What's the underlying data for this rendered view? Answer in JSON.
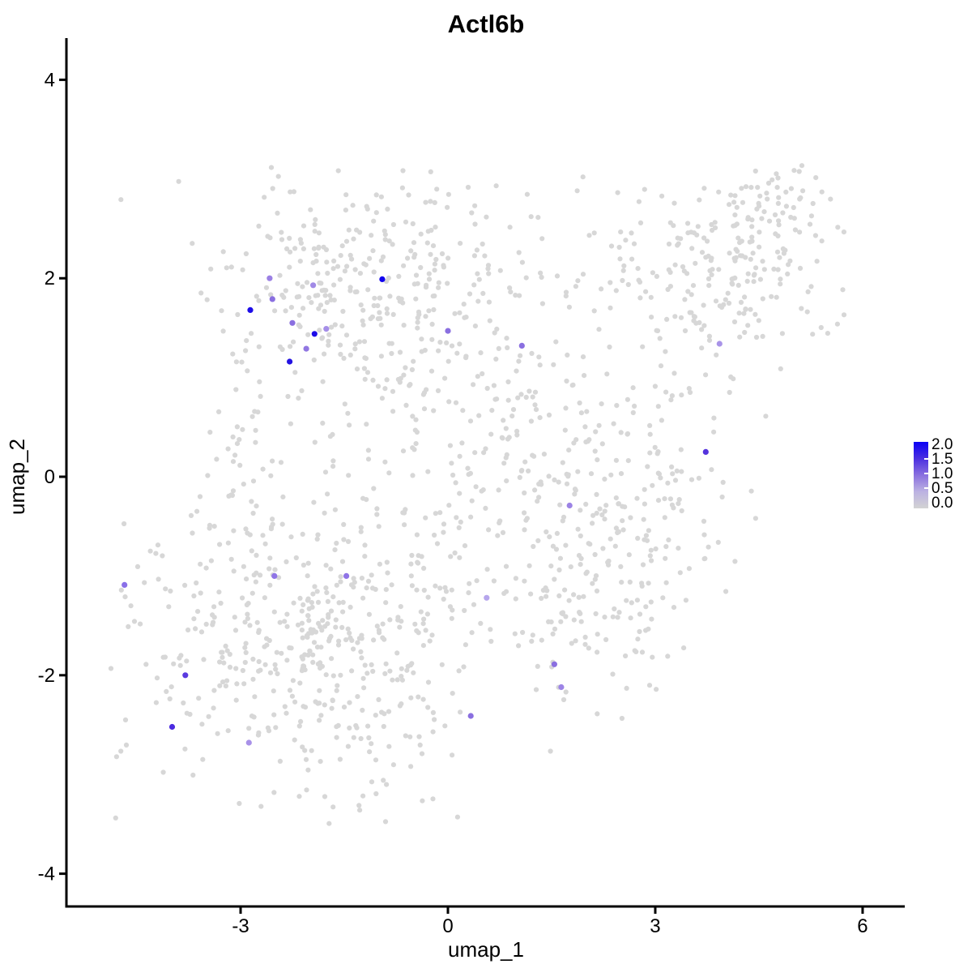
{
  "title": "Actl6b",
  "axes": {
    "x": {
      "label": "umap_1",
      "tick_labels": [
        "-3",
        "0",
        "3",
        "6"
      ],
      "tick_values": [
        -3,
        0,
        3,
        6
      ],
      "range": [
        -5.52,
        6.61
      ]
    },
    "y": {
      "label": "umap_2",
      "tick_labels": [
        "4",
        "2",
        "0",
        "-2",
        "-4"
      ],
      "tick_values": [
        4,
        2,
        0,
        -2,
        -4
      ],
      "range": [
        -4.33,
        4.42
      ]
    }
  },
  "legend": {
    "labels": [
      "2.0",
      "1.5",
      "1.0",
      "0.5",
      "0.0"
    ],
    "values": [
      2.0,
      1.5,
      1.0,
      0.5,
      0.0
    ],
    "gradient_stops": [
      "#0b00f5",
      "#4b2fe0",
      "#8a70df",
      "#bcb2e2",
      "#d3d3d3"
    ]
  },
  "colors": {
    "background_dot": "#d7d7d7",
    "axis": "#000000",
    "accent_high": "#0000ff",
    "accent_low": "#d3d3d3"
  },
  "chart_data": {
    "type": "scatter",
    "title": "Actl6b",
    "xlabel": "umap_1",
    "ylabel": "umap_2",
    "xlim": [
      -5.52,
      6.61
    ],
    "ylim": [
      -4.33,
      4.42
    ],
    "grid": false,
    "legend_position": "right",
    "expression_scale": {
      "min": 0.0,
      "max": 2.0,
      "low_color": "#d3d3d3",
      "high_color": "#0000ff"
    },
    "highlighted_points": [
      {
        "x": -2.86,
        "y": 1.68,
        "value": 1.9,
        "color": "#1d0ce8"
      },
      {
        "x": -2.58,
        "y": 2.0,
        "value": 0.7,
        "color": "#9b80e4"
      },
      {
        "x": -2.54,
        "y": 1.79,
        "value": 0.9,
        "color": "#8a6fe0"
      },
      {
        "x": -1.95,
        "y": 1.93,
        "value": 0.65,
        "color": "#a18ae6"
      },
      {
        "x": -0.95,
        "y": 1.99,
        "value": 2.0,
        "color": "#1102ee"
      },
      {
        "x": -1.93,
        "y": 1.44,
        "value": 1.9,
        "color": "#1d0ce8"
      },
      {
        "x": -1.76,
        "y": 1.49,
        "value": 0.6,
        "color": "#a58ee8"
      },
      {
        "x": -2.25,
        "y": 1.55,
        "value": 0.85,
        "color": "#8a6fe0"
      },
      {
        "x": -2.05,
        "y": 1.29,
        "value": 0.8,
        "color": "#9177e2"
      },
      {
        "x": -2.29,
        "y": 1.16,
        "value": 1.8,
        "color": "#2312e2"
      },
      {
        "x": 0.0,
        "y": 1.47,
        "value": 0.9,
        "color": "#8a6fe0"
      },
      {
        "x": 1.07,
        "y": 1.32,
        "value": 0.9,
        "color": "#8a6fe0"
      },
      {
        "x": 3.93,
        "y": 1.34,
        "value": 0.6,
        "color": "#a994e8"
      },
      {
        "x": 3.73,
        "y": 0.25,
        "value": 1.2,
        "color": "#5533dd"
      },
      {
        "x": 1.76,
        "y": -0.29,
        "value": 0.7,
        "color": "#9c83e5"
      },
      {
        "x": -4.68,
        "y": -1.09,
        "value": 0.85,
        "color": "#8a70e8"
      },
      {
        "x": -2.51,
        "y": -1.0,
        "value": 0.8,
        "color": "#8f74e6"
      },
      {
        "x": -1.47,
        "y": -1.0,
        "value": 0.8,
        "color": "#8f74e6"
      },
      {
        "x": 0.56,
        "y": -1.22,
        "value": 0.45,
        "color": "#b6a6ec"
      },
      {
        "x": -3.8,
        "y": -2.0,
        "value": 1.15,
        "color": "#5a3ae0"
      },
      {
        "x": 1.54,
        "y": -1.89,
        "value": 0.85,
        "color": "#8a6fe0"
      },
      {
        "x": 1.64,
        "y": -2.12,
        "value": 0.7,
        "color": "#9d84e6"
      },
      {
        "x": -3.99,
        "y": -2.52,
        "value": 1.25,
        "color": "#4b2be0"
      },
      {
        "x": 0.33,
        "y": -2.41,
        "value": 0.9,
        "color": "#8a6fe0"
      },
      {
        "x": -2.88,
        "y": -2.68,
        "value": 0.6,
        "color": "#a891e8"
      }
    ],
    "background_cloud": {
      "description": "Cells with zero Actl6b expression (light grey); positions approximated by gaussian clusters read from the figure.",
      "total_points": 1584,
      "seed": 11,
      "clip": {
        "xmin": -4.9,
        "xmax": 5.75,
        "ymin": -3.6,
        "ymax": 3.15
      },
      "clusters": [
        {
          "cx": -1.09,
          "cy": 1.86,
          "sx": 1.05,
          "sy": 0.65,
          "n": 360
        },
        {
          "cx": -3.05,
          "cy": 0.4,
          "sx": 0.25,
          "sy": 0.55,
          "n": 40
        },
        {
          "cx": 3.83,
          "cy": 2.1,
          "sx": 0.95,
          "sy": 0.57,
          "n": 200
        },
        {
          "cx": 4.65,
          "cy": 2.6,
          "sx": 0.35,
          "sy": 0.37,
          "n": 70
        },
        {
          "cx": 1.02,
          "cy": 0.23,
          "sx": 1.1,
          "sy": 0.75,
          "n": 230
        },
        {
          "cx": -1.91,
          "cy": -1.65,
          "sx": 1.29,
          "sy": 0.82,
          "n": 500
        },
        {
          "cx": 3.01,
          "cy": -0.42,
          "sx": 0.6,
          "sy": 0.6,
          "n": 90
        },
        {
          "cx": 2.07,
          "cy": -1.4,
          "sx": 0.55,
          "sy": 0.5,
          "n": 90
        },
        {
          "cx": -4.68,
          "cy": -1.22,
          "sx": 0.07,
          "sy": 0.1,
          "n": 4
        }
      ]
    }
  }
}
